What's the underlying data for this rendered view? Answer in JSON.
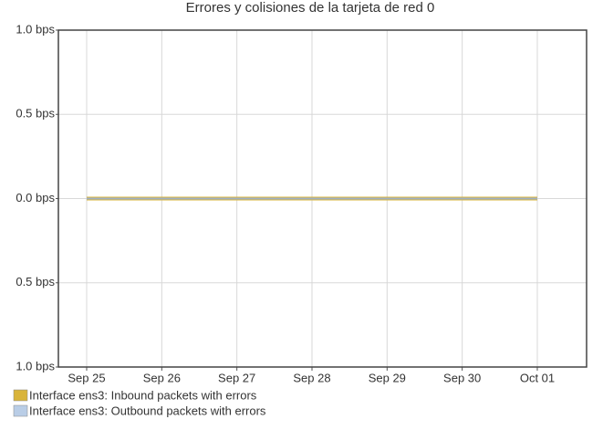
{
  "chart_data": {
    "type": "line",
    "title": "Errores y colisiones de la tarjeta de red 0",
    "x": [
      "Sep 25",
      "Sep 26",
      "Sep 27",
      "Sep 28",
      "Sep 29",
      "Sep 30",
      "Oct 01"
    ],
    "series": [
      {
        "name": "Interface ens3: Inbound packets with errors",
        "color": "#d9b43a",
        "values": [
          0,
          0,
          0,
          0,
          0,
          0,
          0
        ]
      },
      {
        "name": "Interface ens3: Outbound packets with errors",
        "color": "#b9cde6",
        "values": [
          0,
          0,
          0,
          0,
          0,
          0,
          0
        ]
      }
    ],
    "ylim": [
      -1,
      1
    ],
    "yticks": [
      {
        "value": -1,
        "label": "1.0 bps"
      },
      {
        "value": -0.5,
        "label": "0.5 bps"
      },
      {
        "value": 0,
        "label": "0.0 bps"
      },
      {
        "value": 0.5,
        "label": "0.5 bps"
      },
      {
        "value": 1,
        "label": "1.0 bps"
      }
    ],
    "grid": true
  }
}
